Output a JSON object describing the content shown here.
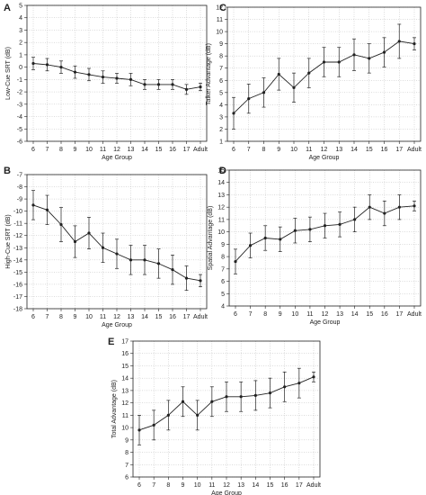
{
  "figure": {
    "background": "#ffffff",
    "line_color": "#222222"
  },
  "chart_data": [
    {
      "panel": "A",
      "type": "line",
      "categories": [
        "6",
        "7",
        "8",
        "9",
        "10",
        "11",
        "12",
        "13",
        "14",
        "15",
        "16",
        "17",
        "Adult"
      ],
      "xlabel": "Age Group",
      "ylabel": "Low-Cue SRT (dB)",
      "ylim": [
        -6,
        5
      ],
      "yticks": [
        -6,
        -5,
        -4,
        -3,
        -2,
        -1,
        0,
        1,
        2,
        3,
        4,
        5
      ],
      "grid": true,
      "values": [
        0.3,
        0.2,
        0.0,
        -0.4,
        -0.6,
        -0.8,
        -0.9,
        -1.0,
        -1.4,
        -1.4,
        -1.4,
        -1.8,
        -1.6
      ],
      "errors": [
        0.5,
        0.5,
        0.5,
        0.5,
        0.5,
        0.5,
        0.4,
        0.5,
        0.4,
        0.4,
        0.4,
        0.4,
        0.3
      ]
    },
    {
      "panel": "B",
      "type": "line",
      "categories": [
        "6",
        "7",
        "8",
        "9",
        "10",
        "11",
        "12",
        "13",
        "14",
        "15",
        "16",
        "17",
        "Adult"
      ],
      "xlabel": "Age Group",
      "ylabel": "High-Cue SRT (dB)",
      "ylim": [
        -18,
        -7
      ],
      "yticks": [
        -18,
        -17,
        -16,
        -15,
        -14,
        -13,
        -12,
        -11,
        -10,
        -9,
        -8,
        -7
      ],
      "grid": true,
      "values": [
        -9.5,
        -9.9,
        -11.1,
        -12.5,
        -11.8,
        -13.0,
        -13.5,
        -14.0,
        -14.0,
        -14.3,
        -14.8,
        -15.5,
        -15.7
      ],
      "errors": [
        1.2,
        1.2,
        1.4,
        1.3,
        1.3,
        1.2,
        1.2,
        1.2,
        1.2,
        1.2,
        1.2,
        1.0,
        0.5
      ]
    },
    {
      "panel": "C",
      "type": "line",
      "categories": [
        "6",
        "7",
        "8",
        "9",
        "10",
        "11",
        "12",
        "13",
        "14",
        "15",
        "16",
        "17",
        "Adult"
      ],
      "xlabel": "Age Group",
      "ylabel": "Talker Advantage (dB)",
      "ylim": [
        1,
        12
      ],
      "yticks": [
        1,
        2,
        3,
        4,
        5,
        6,
        7,
        8,
        9,
        10,
        11,
        12
      ],
      "grid": true,
      "values": [
        3.3,
        4.5,
        5.0,
        6.5,
        5.4,
        6.6,
        7.5,
        7.5,
        8.1,
        7.8,
        8.3,
        9.2,
        9.0
      ],
      "errors": [
        1.3,
        1.2,
        1.2,
        1.3,
        1.2,
        1.2,
        1.2,
        1.2,
        1.3,
        1.2,
        1.2,
        1.4,
        0.5
      ]
    },
    {
      "panel": "D",
      "type": "line",
      "categories": [
        "6",
        "7",
        "8",
        "9",
        "10",
        "11",
        "12",
        "13",
        "14",
        "15",
        "16",
        "17",
        "Adult"
      ],
      "xlabel": "Age Group",
      "ylabel": "Spatial Advantage (dB)",
      "ylim": [
        4,
        15
      ],
      "yticks": [
        4,
        5,
        6,
        7,
        8,
        9,
        10,
        11,
        12,
        13,
        14,
        15
      ],
      "grid": true,
      "values": [
        7.6,
        8.9,
        9.5,
        9.4,
        10.1,
        10.2,
        10.5,
        10.6,
        11.0,
        12.0,
        11.5,
        12.0,
        12.1
      ],
      "errors": [
        1.0,
        1.0,
        1.0,
        1.0,
        1.0,
        1.0,
        1.0,
        1.0,
        1.0,
        1.0,
        1.0,
        1.0,
        0.4
      ]
    },
    {
      "panel": "E",
      "type": "line",
      "categories": [
        "6",
        "7",
        "8",
        "9",
        "10",
        "11",
        "12",
        "13",
        "14",
        "15",
        "16",
        "17",
        "Adult"
      ],
      "xlabel": "Age Group",
      "ylabel": "Total Advantage (dB)",
      "ylim": [
        6,
        17
      ],
      "yticks": [
        6,
        7,
        8,
        9,
        10,
        11,
        12,
        13,
        14,
        15,
        16,
        17
      ],
      "grid": true,
      "values": [
        9.8,
        10.2,
        11.0,
        12.1,
        11.0,
        12.1,
        12.5,
        12.5,
        12.6,
        12.8,
        13.3,
        13.6,
        14.1
      ],
      "errors": [
        1.2,
        1.2,
        1.2,
        1.2,
        1.2,
        1.2,
        1.2,
        1.2,
        1.2,
        1.2,
        1.2,
        1.2,
        0.4
      ]
    }
  ]
}
